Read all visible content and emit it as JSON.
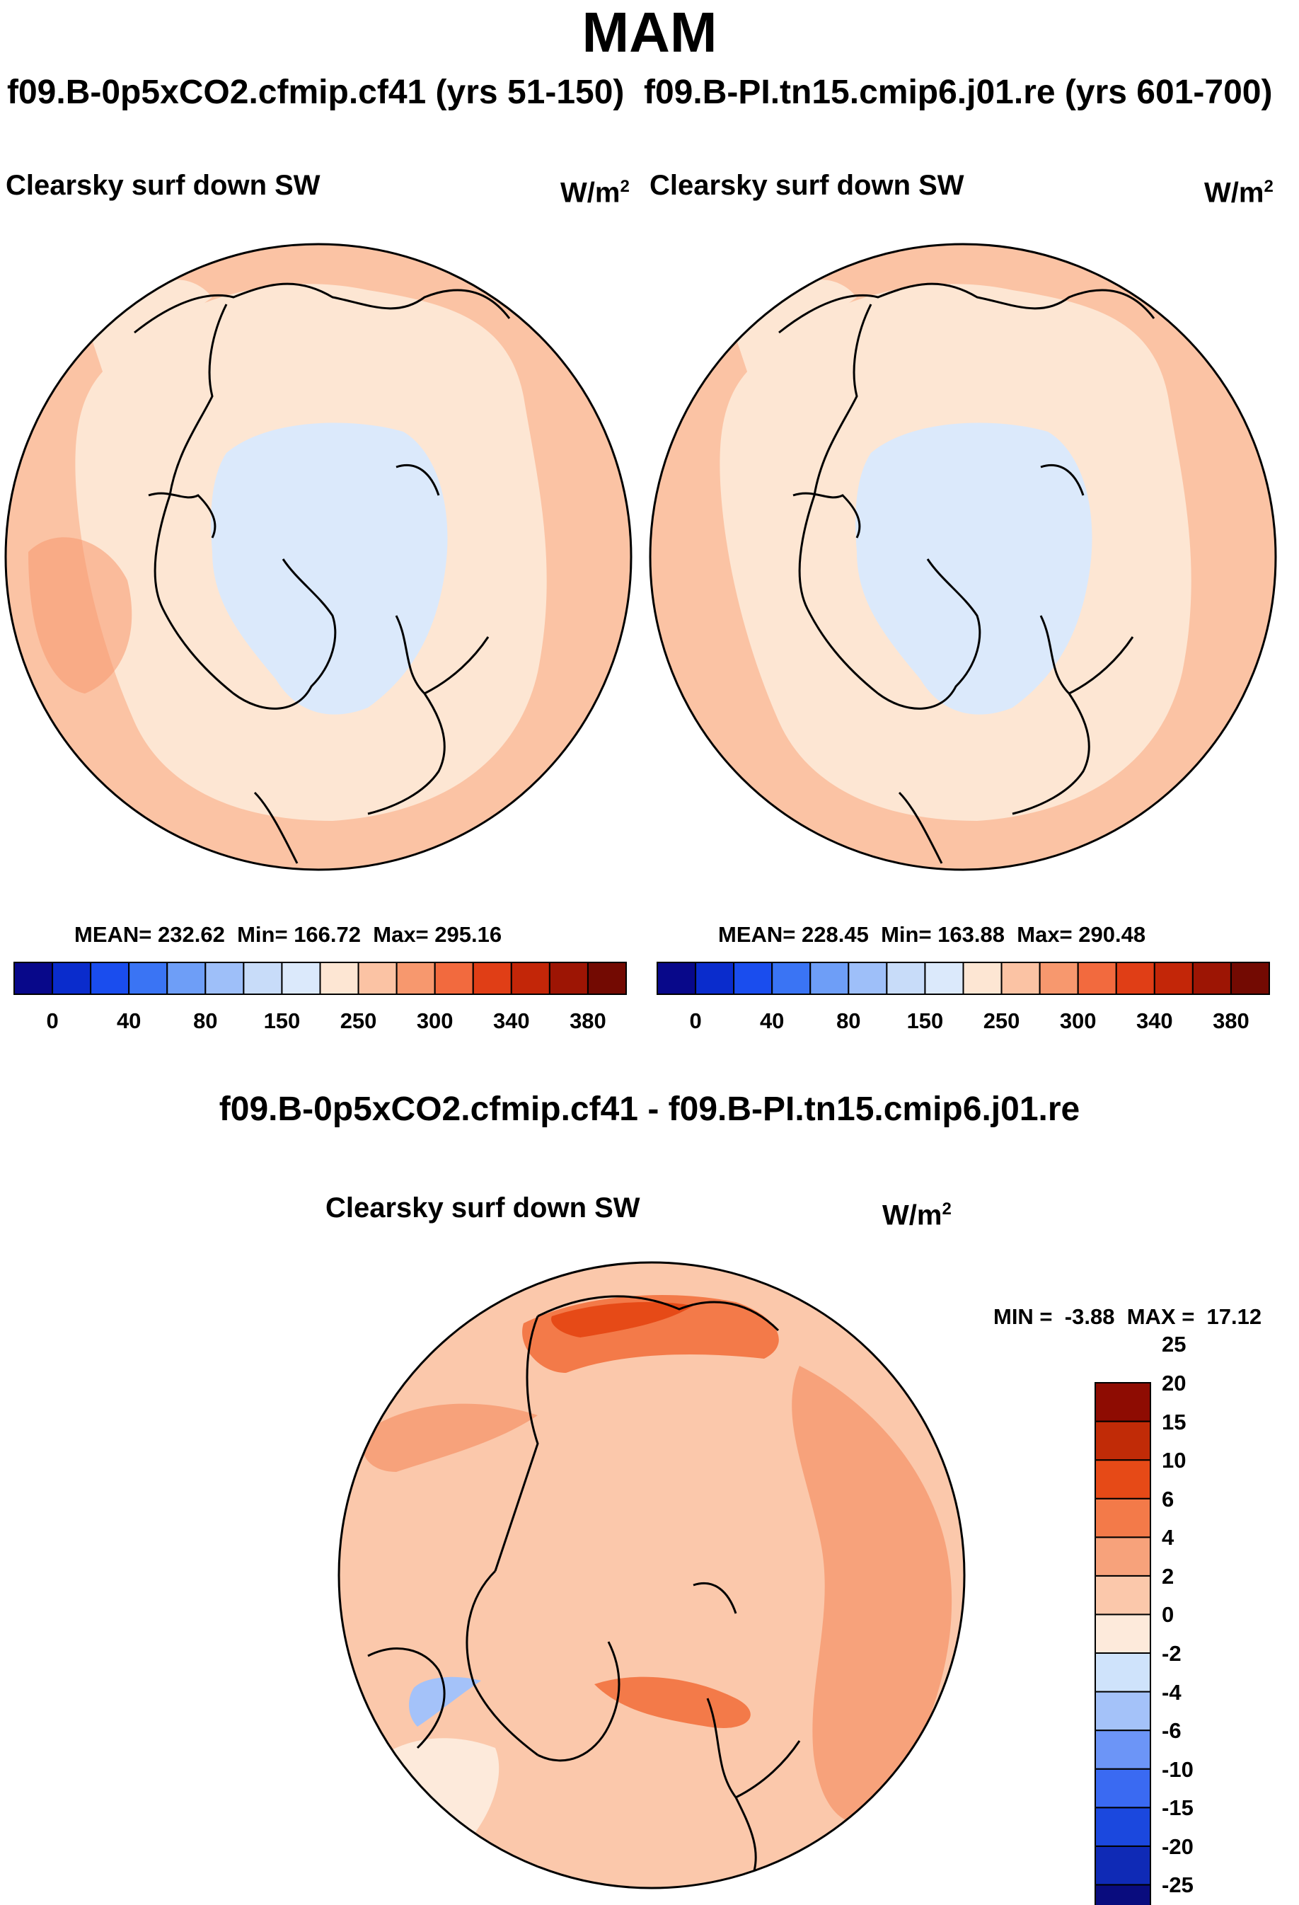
{
  "figure": {
    "season": "MAM",
    "case_a_title": "f09.B-0p5xCO2.cfmip.cf41 (yrs 51-150)",
    "case_b_title": "f09.B-PI.tn15.cmip6.j01.re (yrs 601-700)",
    "diff_title": "f09.B-0p5xCO2.cfmip.cf41 - f09.B-PI.tn15.cmip6.j01.re"
  },
  "panels": [
    {
      "variable": "Clearsky surf down SW",
      "units_base": "W/m",
      "units_exp": "2",
      "mean_label": "MEAN=",
      "mean": "232.62",
      "min_label": "Min=",
      "min": "166.72",
      "max_label": "Max=",
      "max": "295.16"
    },
    {
      "variable": "Clearsky surf down SW",
      "units_base": "W/m",
      "units_exp": "2",
      "mean_label": "MEAN=",
      "mean": "228.45",
      "min_label": "Min=",
      "min": "163.88",
      "max_label": "Max=",
      "max": "290.48"
    }
  ],
  "diff_panel": {
    "variable": "Clearsky surf down SW",
    "units_base": "W/m",
    "units_exp": "2",
    "min_label": "MIN =",
    "min": "-3.88",
    "max_label": "MAX =",
    "max": "17.12"
  },
  "abs_colorbar": {
    "colors": [
      "#08088a",
      "#0a2ccc",
      "#1a4dee",
      "#3a74f4",
      "#6e9ef7",
      "#9ebff9",
      "#c8dcf9",
      "#dbe9fb",
      "#fde6d3",
      "#fbc3a4",
      "#f7986e",
      "#f26a3e",
      "#e03e16",
      "#c32608",
      "#9d1504",
      "#730a02"
    ],
    "tick_labels": [
      "0",
      "40",
      "80",
      "150",
      "250",
      "300",
      "340",
      "380"
    ]
  },
  "diff_colorbar": {
    "colors": [
      "#090c7e",
      "#0f2ab6",
      "#1b48de",
      "#3a6af2",
      "#6c95f7",
      "#a4c2f9",
      "#cfe3fb",
      "#fdeadb",
      "#fbc8ab",
      "#f7a27b",
      "#f37a49",
      "#e64a17",
      "#c12b07",
      "#8e0c02"
    ],
    "tick_labels": [
      "-25",
      "-20",
      "-15",
      "-10",
      "-6",
      "-4",
      "-2",
      "0",
      "2",
      "4",
      "6",
      "10",
      "15",
      "20",
      "25"
    ]
  },
  "chart_data": {
    "type": "map",
    "projection": "north polar stereographic",
    "season": "MAM",
    "variable": "Clearsky surf down SW",
    "units": "W/m2",
    "panels": [
      {
        "case": "f09.B-0p5xCO2.cfmip.cf41 (yrs 51-150)",
        "mean": 232.62,
        "min": 166.72,
        "max": 295.16
      },
      {
        "case": "f09.B-PI.tn15.cmip6.j01.re (yrs 601-700)",
        "mean": 228.45,
        "min": 163.88,
        "max": 290.48
      },
      {
        "case": "f09.B-0p5xCO2.cfmip.cf41 - f09.B-PI.tn15.cmip6.j01.re",
        "min": -3.88,
        "max": 17.12
      }
    ],
    "abs_levels": [
      0,
      40,
      80,
      150,
      250,
      300,
      340,
      380
    ],
    "diff_levels": [
      -25,
      -20,
      -15,
      -10,
      -6,
      -4,
      -2,
      0,
      2,
      4,
      6,
      10,
      15,
      20,
      25
    ]
  }
}
